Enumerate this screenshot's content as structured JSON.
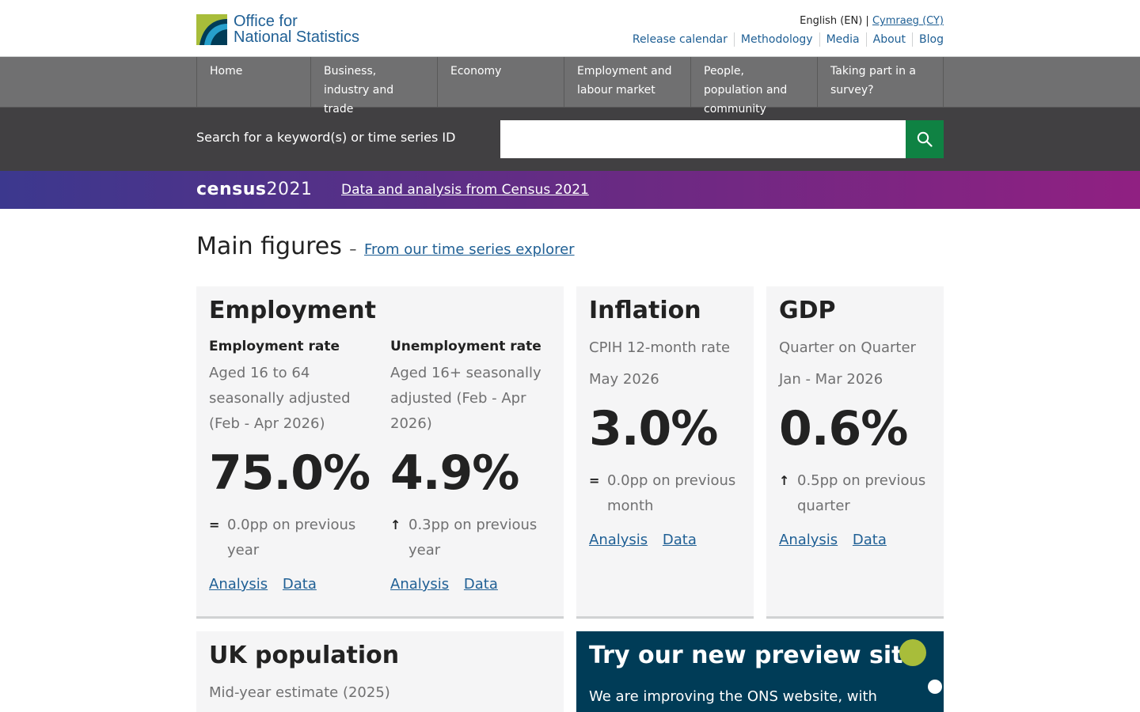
{
  "header": {
    "logo_line1": "Office for",
    "logo_line2": "National Statistics",
    "lang_current": "English (EN) |",
    "lang_other": "Cymraeg (CY)",
    "util_links": [
      "Release calendar",
      "Methodology",
      "Media",
      "About",
      "Blog"
    ]
  },
  "nav": {
    "items": [
      "Home",
      "Business, industry and trade",
      "Economy",
      "Employment and labour market",
      "People, population and community",
      "Taking part in a survey?"
    ]
  },
  "search": {
    "label": "Search for a keyword(s) or time series ID",
    "icon": "search-icon"
  },
  "census": {
    "logo_bold": "census",
    "logo_year": "2021",
    "link": "Data and analysis from Census 2021"
  },
  "main": {
    "title": "Main figures",
    "dash": "–",
    "explorer_link": "From our time series explorer"
  },
  "employment": {
    "title": "Employment",
    "rate": {
      "heading": "Employment rate",
      "desc": "Aged 16 to 64 seasonally adjusted (Feb - Apr 2026)",
      "value": "75.0%",
      "change_symbol": "=",
      "change": "0.0pp on previous year",
      "analysis": "Analysis",
      "data": "Data"
    },
    "unemployment": {
      "heading": "Unemployment rate",
      "desc": "Aged 16+ seasonally adjusted (Feb - Apr 2026)",
      "value": "4.9%",
      "change_symbol": "↑",
      "change": "0.3pp on previous year",
      "analysis": "Analysis",
      "data": "Data"
    }
  },
  "inflation": {
    "title": "Inflation",
    "measure": "CPIH 12-month rate",
    "period": "May 2026",
    "value": "3.0%",
    "change_symbol": "=",
    "change": "0.0pp on previous month",
    "analysis": "Analysis",
    "data": "Data"
  },
  "gdp": {
    "title": "GDP",
    "measure": "Quarter on Quarter",
    "period": "Jan - Mar 2026",
    "value": "0.6%",
    "change_symbol": "↑",
    "change": "0.5pp on previous quarter",
    "analysis": "Analysis",
    "data": "Data"
  },
  "population": {
    "title": "UK population",
    "measure": "Mid-year estimate (2025)"
  },
  "preview": {
    "title": "Try our new preview site",
    "text": "We are improving the ONS website, with"
  },
  "colors": {
    "link": "#206095",
    "nav_bg": "#707071",
    "search_bg": "#414042",
    "search_button": "#0f8243",
    "preview_bg": "#003c57",
    "accent_dot": "#a8bd3a"
  }
}
